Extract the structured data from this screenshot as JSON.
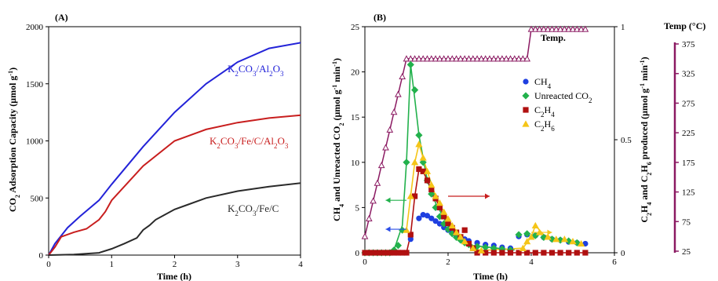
{
  "colors": {
    "blue": "#2323d8",
    "red": "#c81e1e",
    "black": "#2a2a2a",
    "purple": "#8b1a62",
    "green": "#22b14c",
    "marker_blue": "#1f3fe0",
    "marker_red": "#b01010",
    "marker_yellow": "#f5c518",
    "arrow_blue": "#2a4de8",
    "arrow_green": "#22b14c",
    "arrow_red": "#c81e1e",
    "arrow_yellow": "#f5c518"
  },
  "chart_data": [
    {
      "panel": "(A)",
      "type": "line",
      "xlabel": "Time (h)",
      "ylabel": "CO2 Adsorption Capacity (μmol g-1)",
      "ylabel_parts": {
        "a": "CO",
        "b": "2",
        "c": " Adsorption Capacity (μmol g",
        "d": "-1",
        "e": ")"
      },
      "xlim": [
        0,
        4
      ],
      "ylim": [
        0,
        2000
      ],
      "xticks": [
        "0",
        "1",
        "2",
        "3",
        "4"
      ],
      "yticks": [
        "0",
        "500",
        "1000",
        "1500",
        "2000"
      ],
      "series": [
        {
          "name": "K2CO3/Al2O3",
          "color_key": "blue",
          "label_parts": [
            "K",
            "2",
            "CO",
            "3",
            "/Al",
            "2",
            "O",
            "3"
          ],
          "x": [
            0,
            0.1,
            0.3,
            0.5,
            0.8,
            1.0,
            1.5,
            2.0,
            2.5,
            3.0,
            3.5,
            4.0
          ],
          "y": [
            0,
            100,
            240,
            340,
            480,
            620,
            950,
            1250,
            1500,
            1690,
            1810,
            1860
          ]
        },
        {
          "name": "K2CO3/Fe/C/Al2O3",
          "color_key": "red",
          "label_parts": [
            "K",
            "2",
            "CO",
            "3",
            "/Fe/C/Al",
            "2",
            "O",
            "3"
          ],
          "x": [
            0,
            0.1,
            0.2,
            0.4,
            0.6,
            0.8,
            0.9,
            1.0,
            1.5,
            2.0,
            2.5,
            3.0,
            3.5,
            4.0
          ],
          "y": [
            0,
            70,
            160,
            200,
            230,
            310,
            380,
            480,
            780,
            1000,
            1100,
            1160,
            1200,
            1225
          ]
        },
        {
          "name": "K2CO3/Fe/C",
          "color_key": "black",
          "label_parts": [
            "K",
            "2",
            "CO",
            "3",
            "/Fe/C",
            "",
            "",
            ""
          ],
          "x": [
            0,
            0.4,
            0.8,
            1.0,
            1.2,
            1.4,
            1.5,
            1.6,
            1.7,
            1.8,
            2.0,
            2.2,
            2.5,
            3.0,
            3.5,
            4.0
          ],
          "y": [
            0,
            5,
            20,
            55,
            100,
            150,
            220,
            260,
            310,
            340,
            400,
            440,
            500,
            560,
            600,
            630
          ]
        }
      ]
    },
    {
      "panel": "(B)",
      "type": "scatter",
      "xlabel": "Time (h)",
      "ylabel_left": "CH4 and Unreacted CO2 (μmol g-1 min-1)",
      "ylabel_left_parts": {
        "a": "CH",
        "b": "4",
        "c": " and Unreacted CO",
        "d": "2",
        "e": " (μmol g",
        "f": "-1",
        "g": " min",
        "h": "-1",
        "i": ")"
      },
      "ylabel_right": "C2H4 and C2H6 produced (μmol g-1 min-1)",
      "ylabel_right_parts": {
        "a": "C",
        "b": "2",
        "c": "H",
        "d": "4",
        "e": " and C",
        "f": "2",
        "g": "H",
        "h": "6",
        "i": " produced (μmol g",
        "j": "-1",
        "k": " min",
        "l": "-1",
        "m": ")"
      },
      "temp_label": "Temp (°C)",
      "temp_ticks": [
        "375",
        "325",
        "275",
        "225",
        "175",
        "125",
        "75",
        "25"
      ],
      "xlim": [
        0,
        6
      ],
      "ylim_left": [
        0,
        25
      ],
      "ylim_right": [
        0,
        1
      ],
      "temp_lim": [
        25,
        375
      ],
      "xticks": [
        "0",
        "2",
        "4",
        "6"
      ],
      "yticks_left": [
        "0",
        "5",
        "10",
        "15",
        "20",
        "25"
      ],
      "yticks_right": [
        "0",
        "0.5",
        "1"
      ],
      "temp_series_label": "Temp.",
      "legend": [
        {
          "name": "CH4",
          "parts": [
            "CH",
            "4",
            "",
            ""
          ],
          "marker": "circle",
          "color_key": "marker_blue"
        },
        {
          "name": "Unreacted CO2",
          "parts": [
            "Unreacted CO",
            "2",
            "",
            ""
          ],
          "marker": "diamond",
          "color_key": "green"
        },
        {
          "name": "C2H4",
          "parts": [
            "C",
            "2",
            "H",
            "4"
          ],
          "marker": "square",
          "color_key": "marker_red"
        },
        {
          "name": "C2H6",
          "parts": [
            "C",
            "2",
            "H",
            "6"
          ],
          "marker": "triangle",
          "color_key": "marker_yellow"
        }
      ],
      "series": [
        {
          "name": "Temp.",
          "axis": "temp",
          "marker": "open-triangle",
          "color_key": "purple",
          "x": [
            0,
            0.1,
            0.2,
            0.3,
            0.4,
            0.5,
            0.6,
            0.7,
            0.8,
            0.9,
            1.0,
            1.1,
            1.2,
            1.3,
            1.4,
            1.5,
            1.6,
            1.7,
            1.8,
            1.9,
            2.0,
            2.1,
            2.2,
            2.3,
            2.4,
            2.5,
            2.6,
            2.7,
            2.8,
            2.9,
            3.0,
            3.1,
            3.2,
            3.3,
            3.4,
            3.5,
            3.6,
            3.7,
            3.8,
            3.9,
            4.0,
            4.1,
            4.2,
            4.3,
            4.4,
            4.5,
            4.6,
            4.7,
            4.8,
            4.9,
            5.0,
            5.1,
            5.2,
            5.3
          ],
          "y": [
            50,
            80,
            110,
            140,
            170,
            200,
            230,
            260,
            290,
            320,
            350,
            350,
            350,
            350,
            350,
            350,
            350,
            350,
            350,
            350,
            350,
            350,
            350,
            350,
            350,
            350,
            350,
            350,
            350,
            350,
            350,
            350,
            350,
            350,
            350,
            350,
            350,
            350,
            350,
            350,
            400,
            400,
            400,
            400,
            400,
            400,
            400,
            400,
            400,
            400,
            400,
            400,
            400,
            400
          ]
        },
        {
          "name": "CH4",
          "axis": "left",
          "marker": "circle",
          "color_key": "marker_blue",
          "x": [
            0,
            0.1,
            0.2,
            0.3,
            0.4,
            0.5,
            0.6,
            0.7,
            0.8,
            0.9,
            1.0,
            1.1,
            1.3,
            1.4,
            1.5,
            1.6,
            1.7,
            1.8,
            1.9,
            2.0,
            2.1,
            2.2,
            2.3,
            2.4,
            2.5,
            2.7,
            2.9,
            3.1,
            3.3,
            3.5,
            3.7,
            3.9,
            4.1,
            4.3,
            4.5,
            4.7,
            4.9,
            5.1,
            5.3
          ],
          "y": [
            0,
            0,
            0,
            0,
            0,
            0,
            0,
            0,
            0,
            0,
            0,
            1.5,
            3.8,
            4.2,
            4.1,
            3.8,
            3.5,
            3.2,
            2.8,
            2.5,
            2.2,
            1.9,
            1.7,
            1.5,
            1.3,
            1.1,
            0.9,
            0.8,
            0.6,
            0.5,
            1.8,
            2.0,
            1.9,
            1.7,
            1.5,
            1.4,
            1.2,
            1.1,
            1.0
          ]
        },
        {
          "name": "Unreacted CO2",
          "axis": "left",
          "marker": "diamond",
          "color_key": "green",
          "x": [
            0,
            0.1,
            0.2,
            0.3,
            0.4,
            0.5,
            0.6,
            0.7,
            0.8,
            0.9,
            1.0,
            1.1,
            1.2,
            1.3,
            1.4,
            1.5,
            1.6,
            1.7,
            1.8,
            1.9,
            2.0,
            2.1,
            2.2,
            2.3,
            2.4,
            2.5,
            2.7,
            2.9,
            3.1,
            3.3,
            3.5,
            3.7,
            3.9,
            4.1,
            4.3,
            4.5,
            4.7,
            4.9,
            5.1
          ],
          "y": [
            0,
            0,
            0,
            0,
            0,
            0,
            0,
            0.3,
            0.8,
            2.5,
            10,
            20.8,
            18,
            13,
            10,
            8,
            6.5,
            5,
            4,
            3.2,
            2.6,
            2.1,
            1.7,
            1.4,
            1.1,
            0.9,
            0.7,
            0.6,
            0.5,
            0.4,
            0.3,
            2.0,
            2.1,
            1.9,
            1.7,
            1.5,
            1.4,
            1.3,
            1.1
          ]
        },
        {
          "name": "C2H4",
          "axis": "right",
          "marker": "square",
          "color_key": "marker_red",
          "x": [
            0,
            0.1,
            0.2,
            0.3,
            0.4,
            0.5,
            0.6,
            0.7,
            0.8,
            0.9,
            1.0,
            1.1,
            1.2,
            1.3,
            1.4,
            1.5,
            1.6,
            1.7,
            1.8,
            1.9,
            2.0,
            2.1,
            2.2,
            2.3,
            2.4,
            2.5,
            2.6,
            2.7,
            2.9,
            3.1,
            3.3,
            3.5,
            3.7,
            3.9,
            4.1,
            4.3,
            4.5,
            4.7,
            4.9,
            5.1,
            5.3
          ],
          "y": [
            0,
            0,
            0,
            0,
            0,
            0,
            0,
            0,
            0,
            0,
            0,
            0.08,
            0.25,
            0.37,
            0.36,
            0.32,
            0.28,
            0.24,
            0.2,
            0.16,
            0.13,
            0.11,
            0.09,
            0.07,
            0.1,
            0.04,
            0.02,
            0,
            0,
            0,
            0,
            0,
            0,
            0,
            0,
            0,
            0,
            0,
            0,
            0,
            0
          ]
        },
        {
          "name": "C2H6",
          "axis": "right",
          "marker": "triangle",
          "color_key": "marker_yellow",
          "x": [
            1.0,
            1.1,
            1.2,
            1.3,
            1.4,
            1.5,
            1.6,
            1.7,
            1.8,
            1.9,
            2.0,
            2.1,
            2.2,
            2.3,
            2.4,
            2.6,
            2.8,
            3.8,
            3.9,
            4.0,
            4.1,
            4.2,
            4.4,
            4.6,
            4.8,
            5.0,
            5.2
          ],
          "y": [
            0.1,
            0.25,
            0.4,
            0.48,
            0.42,
            0.36,
            0.3,
            0.25,
            0.22,
            0.18,
            0.15,
            0.12,
            0.09,
            0.07,
            0.05,
            0.02,
            0.01,
            0.02,
            0.05,
            0.07,
            0.12,
            0.09,
            0.07,
            0.06,
            0.06,
            0.05,
            0.04
          ]
        }
      ],
      "curves": [
        {
          "color_key": "green",
          "axis": "left",
          "x": [
            0,
            0.7,
            0.9,
            1.0,
            1.1,
            1.2,
            1.3,
            1.5,
            1.7,
            2.0,
            2.3,
            2.6,
            3.0,
            3.4,
            3.6
          ],
          "y": [
            0,
            0.3,
            3.0,
            10,
            20.8,
            17,
            13,
            8,
            5.5,
            3,
            1.5,
            0.8,
            0.6,
            0.4,
            0.3
          ]
        },
        {
          "color_key": "marker_red",
          "axis": "right",
          "x": [
            0,
            1.0,
            1.1,
            1.2,
            1.3,
            1.4,
            1.6,
            1.8,
            2.0,
            2.2,
            2.4,
            2.6,
            2.8,
            5.3
          ],
          "y": [
            0,
            0,
            0.08,
            0.25,
            0.37,
            0.36,
            0.28,
            0.2,
            0.13,
            0.09,
            0.06,
            0.02,
            0,
            0
          ]
        },
        {
          "color_key": "marker_yellow",
          "axis": "right",
          "x": [
            1.0,
            1.1,
            1.2,
            1.3,
            1.5,
            1.7,
            1.9,
            2.1,
            2.3,
            2.6,
            2.8,
            3.8,
            4.0,
            4.1,
            4.3,
            4.6,
            5.0,
            5.2
          ],
          "y": [
            0.1,
            0.25,
            0.4,
            0.48,
            0.36,
            0.25,
            0.18,
            0.12,
            0.07,
            0.02,
            0.01,
            0.02,
            0.07,
            0.12,
            0.08,
            0.06,
            0.05,
            0.04
          ]
        }
      ],
      "arrows": [
        {
          "color_key": "arrow_green",
          "direction": "left",
          "x_from": 1.0,
          "x_to": 0.5,
          "y": 5.8,
          "axis": "left"
        },
        {
          "color_key": "arrow_blue",
          "direction": "left",
          "x_from": 1.0,
          "x_to": 0.5,
          "y": 2.6,
          "axis": "left"
        },
        {
          "color_key": "arrow_red",
          "direction": "right",
          "x_from": 2.0,
          "x_to": 3.0,
          "y": 0.25,
          "axis": "right"
        },
        {
          "color_key": "arrow_yellow",
          "direction": "right",
          "x_from": 4.0,
          "x_to": 4.5,
          "y": 0.09,
          "axis": "right"
        }
      ]
    }
  ]
}
